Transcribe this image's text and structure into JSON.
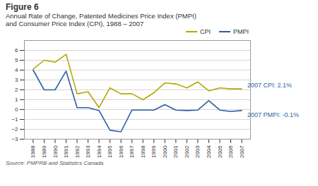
{
  "chart_data": {
    "type": "line",
    "title": "Figure 6",
    "subtitle": [
      "Annual Rate of Change, Patented Medicines Price Index (PMPI)",
      "and Consumer Price Index (CPI), 1988 – 2007"
    ],
    "source": "Source: PMPRB and Statistics Canada",
    "x": [
      1988,
      1989,
      1990,
      1991,
      1992,
      1993,
      1994,
      1995,
      1996,
      1997,
      1998,
      1999,
      2000,
      2001,
      2002,
      2003,
      2004,
      2005,
      2006,
      2007
    ],
    "series": [
      {
        "name": "CPI",
        "color": "#b5a800",
        "values": [
          4.1,
          5.0,
          4.8,
          5.6,
          1.6,
          1.8,
          0.2,
          2.2,
          1.6,
          1.6,
          1.0,
          1.7,
          2.7,
          2.6,
          2.2,
          2.8,
          1.9,
          2.2,
          2.1,
          2.1
        ]
      },
      {
        "name": "PMPI",
        "color": "#2e5fa3",
        "values": [
          4.0,
          2.0,
          2.0,
          3.9,
          0.2,
          0.2,
          -0.1,
          -2.1,
          -2.25,
          -0.05,
          -0.05,
          -0.05,
          0.5,
          -0.05,
          -0.1,
          -0.05,
          0.9,
          -0.05,
          -0.2,
          -0.1
        ]
      }
    ],
    "xlim": [
      1987.2,
      2007.8
    ],
    "xticks": [
      1988,
      1989,
      1990,
      1991,
      1992,
      1993,
      1994,
      1995,
      1996,
      1997,
      1998,
      1999,
      2000,
      2001,
      2002,
      2003,
      2004,
      2005,
      2006,
      2007
    ],
    "ylim": [
      -3,
      7
    ],
    "yticks": [
      -3,
      -2,
      -1,
      0,
      1,
      2,
      3,
      4,
      5,
      6
    ],
    "grid": true,
    "legend": "upper right",
    "annotations": [
      {
        "text": "2007 CPI: 2.1%",
        "x": 2007,
        "y": 2.1,
        "color": "#2e5fa3"
      },
      {
        "text": "2007 PMPI: -0.1%",
        "x": 2007,
        "y": -0.1,
        "color": "#2e5fa3"
      }
    ]
  }
}
